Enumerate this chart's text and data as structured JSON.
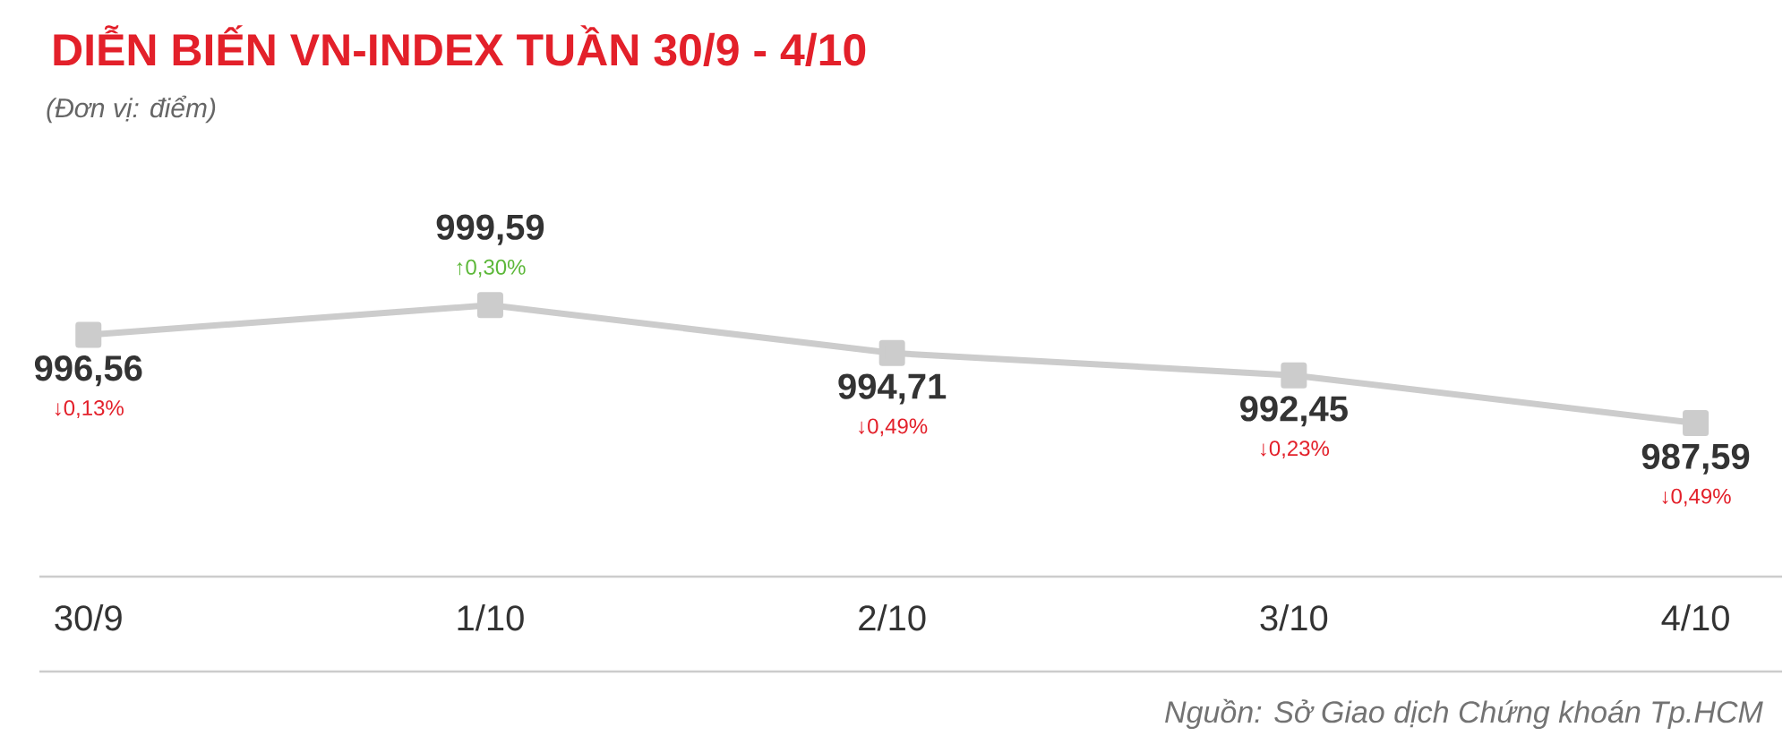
{
  "chart_data": {
    "type": "line",
    "title": "DIỄN BIẾN VN-INDEX TUẦN 30/9 - 4/10",
    "subtitle": "(Đơn vị: điểm)",
    "categories": [
      "30/9",
      "1/10",
      "2/10",
      "3/10",
      "4/10"
    ],
    "series": [
      {
        "color": "#cccccc",
        "values": [
          996.56,
          999.59,
          994.71,
          992.45,
          987.59
        ],
        "value_labels": [
          "996,56",
          "999,59",
          "994,71",
          "992,45",
          "987,59"
        ]
      }
    ],
    "marker": "square",
    "tick_labels": "x",
    "annotations": [
      "↓0,13%",
      "↑0,30%",
      "↓0,49%",
      "↓0,23%",
      "↓0,49%",
      "Nguồn: Sở Giao dịch Chứng khoán Tp.HCM"
    ]
  }
}
